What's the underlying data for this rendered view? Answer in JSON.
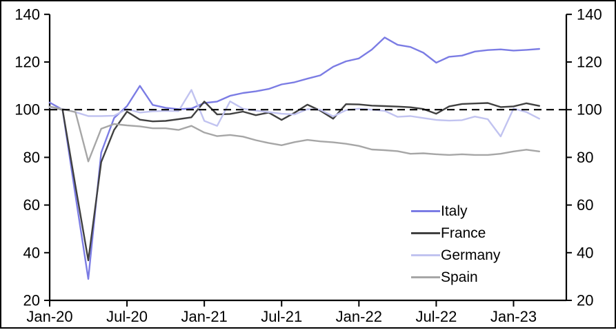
{
  "chart_data": {
    "type": "line",
    "title": "",
    "xlabel": "",
    "ylabel": "",
    "ylim": [
      20,
      140
    ],
    "y_ticks": [
      20,
      40,
      60,
      80,
      100,
      120,
      140
    ],
    "y_axis_mirrored": true,
    "grid": false,
    "reference_line": {
      "value": 100,
      "style": "dashed",
      "color": "#000000"
    },
    "x_tick_labels": [
      "Jan-20",
      "Jul-20",
      "Jan-21",
      "Jul-21",
      "Jan-22",
      "Jul-22",
      "Jan-23"
    ],
    "x_tick_month_offsets": [
      0,
      6,
      12,
      18,
      24,
      30,
      36
    ],
    "months": [
      "Jan-20",
      "Feb-20",
      "Mar-20",
      "Apr-20",
      "May-20",
      "Jun-20",
      "Jul-20",
      "Aug-20",
      "Sep-20",
      "Oct-20",
      "Nov-20",
      "Dec-20",
      "Jan-21",
      "Feb-21",
      "Mar-21",
      "Apr-21",
      "May-21",
      "Jun-21",
      "Jul-21",
      "Aug-21",
      "Sep-21",
      "Oct-21",
      "Nov-21",
      "Dec-21",
      "Jan-22",
      "Feb-22",
      "Mar-22",
      "Apr-22",
      "May-22",
      "Jun-22",
      "Jul-22",
      "Aug-22",
      "Sep-22",
      "Oct-22",
      "Nov-22",
      "Dec-22",
      "Jan-23",
      "Feb-23",
      "Mar-23"
    ],
    "legend_position": "middle-right",
    "series": [
      {
        "name": "Italy",
        "color": "#7b7ce4",
        "values": [
          103,
          100,
          64,
          29,
          82,
          96.5,
          101.5,
          110,
          102,
          100.8,
          100.2,
          100.5,
          102.8,
          103.4,
          105.8,
          107,
          107.7,
          108.7,
          110.6,
          111.5,
          113,
          114.4,
          118,
          120.3,
          121.5,
          125.2,
          130.3,
          127.2,
          126.3,
          123.9,
          119.7,
          122.2,
          122.7,
          124.4,
          125,
          125.3,
          124.8,
          125.1,
          125.5
        ]
      },
      {
        "name": "France",
        "color": "#404040",
        "values": [
          101.3,
          100,
          68,
          36.8,
          78,
          91.5,
          99.2,
          95.8,
          95.1,
          95.3,
          96,
          96.8,
          103.4,
          98,
          98.2,
          99.2,
          97.7,
          98.8,
          95.7,
          98.7,
          102.1,
          99.6,
          96.2,
          102.3,
          102.2,
          101.7,
          101.5,
          101.3,
          101,
          100.3,
          98.3,
          101.4,
          102.4,
          102.6,
          102.8,
          101.1,
          101.4,
          102.7,
          101.6
        ]
      },
      {
        "name": "Germany",
        "color": "#c1c3f0",
        "values": [
          101,
          100.3,
          99,
          97.3,
          97.3,
          97.5,
          100.3,
          98.8,
          99.3,
          99.5,
          99.4,
          108.3,
          95.3,
          93.2,
          103.5,
          100.4,
          99.6,
          99,
          98.3,
          98,
          100.2,
          100,
          97.2,
          99.8,
          100.4,
          100,
          99.5,
          97,
          97.3,
          96.5,
          95.7,
          95.4,
          95.6,
          97.1,
          96,
          88.8,
          100.5,
          99,
          96.2
        ]
      },
      {
        "name": "Spain",
        "color": "#a6a6a6",
        "values": [
          101.3,
          100.2,
          99,
          78.3,
          92,
          94,
          93.4,
          93,
          92.2,
          92.2,
          91.5,
          93.2,
          90.4,
          88.9,
          89.4,
          88.7,
          87.2,
          86,
          85.1,
          86.4,
          87.3,
          86.7,
          86.3,
          85.7,
          84.8,
          83.3,
          83,
          82.6,
          81.5,
          81.7,
          81.3,
          81,
          81.3,
          81,
          81,
          81.5,
          82.5,
          83.2,
          82.5
        ]
      }
    ]
  }
}
